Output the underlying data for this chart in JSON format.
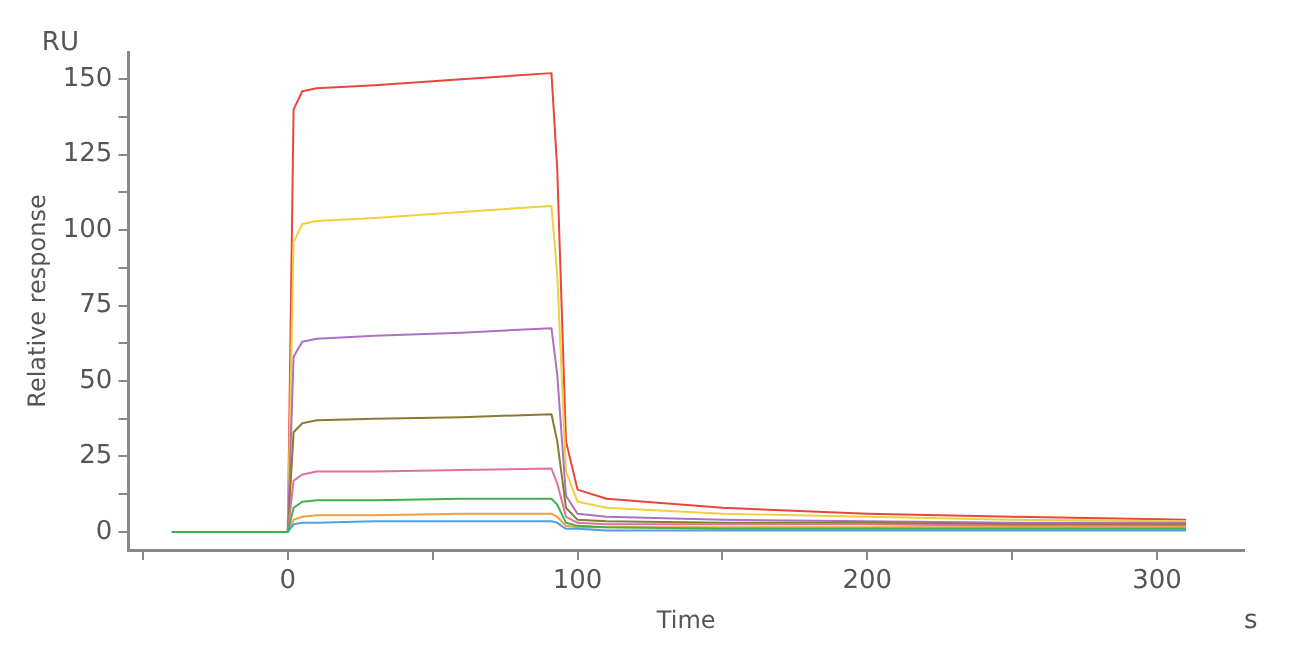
{
  "chart_data": {
    "type": "line",
    "xlabel": "Time",
    "ylabel": "Relative response",
    "annotations": [
      "RU",
      "s"
    ],
    "x": [
      -40,
      0,
      2,
      5,
      10,
      30,
      60,
      91,
      93,
      96,
      100,
      110,
      150,
      200,
      250,
      310
    ],
    "xlim": [
      -55,
      330
    ],
    "xticks": [
      {
        "value": -50,
        "label": null
      },
      0,
      {
        "value": 50,
        "label": null
      },
      100,
      {
        "value": 150,
        "label": null
      },
      200,
      {
        "value": 250,
        "label": null
      },
      300
    ],
    "ylim": [
      -6,
      159
    ],
    "yticks": [
      0,
      {
        "value": 12.5,
        "label": null
      },
      25,
      {
        "value": 37.5,
        "label": null
      },
      50,
      {
        "value": 62.5,
        "label": null
      },
      75,
      {
        "value": 87.5,
        "label": null
      },
      100,
      {
        "value": 112.5,
        "label": null
      },
      125,
      {
        "value": 137.5,
        "label": null
      },
      150
    ],
    "grid": false,
    "legend": false,
    "marker": "none",
    "line_style": "solid",
    "series": [
      {
        "color": "#50a0e0",
        "values": [
          0,
          0,
          2.5,
          3,
          3,
          3.5,
          3.5,
          3.5,
          3,
          1,
          1,
          0.5,
          0.5,
          0.5,
          0.5,
          0.5
        ]
      },
      {
        "color": "#f0a040",
        "values": [
          0,
          0,
          4,
          5,
          5.5,
          5.5,
          6,
          6,
          5,
          2,
          1.5,
          1.5,
          1.5,
          1.5,
          1.5,
          1.5
        ]
      },
      {
        "color": "#40b050",
        "values": [
          0,
          0,
          8,
          10,
          10.5,
          10.5,
          11,
          11,
          9,
          3,
          2,
          1.5,
          1,
          1,
          1,
          1
        ]
      },
      {
        "color": "#e070a0",
        "values": [
          0,
          0,
          17,
          19,
          20,
          20,
          20.5,
          21,
          16,
          5,
          3,
          2.5,
          2.5,
          2.5,
          2,
          2
        ]
      },
      {
        "color": "#8a7a30",
        "values": [
          0,
          0,
          33,
          36,
          37,
          37.5,
          38,
          39,
          30,
          8,
          4,
          3.5,
          3,
          3,
          2.5,
          2.5
        ]
      },
      {
        "color": "#b070c0",
        "values": [
          0,
          0,
          58,
          63,
          64,
          65,
          66,
          67.5,
          52,
          12,
          6,
          5,
          4,
          3.5,
          3,
          3
        ]
      },
      {
        "color": "#f0d040",
        "values": [
          0,
          0,
          96,
          102,
          103,
          104,
          106,
          108,
          85,
          20,
          10,
          8,
          6,
          5,
          4,
          3.5
        ]
      },
      {
        "color": "#e8463c",
        "values": [
          0,
          0,
          140,
          146,
          147,
          148,
          150,
          152,
          120,
          30,
          14,
          11,
          8,
          6,
          5,
          4
        ]
      }
    ]
  }
}
